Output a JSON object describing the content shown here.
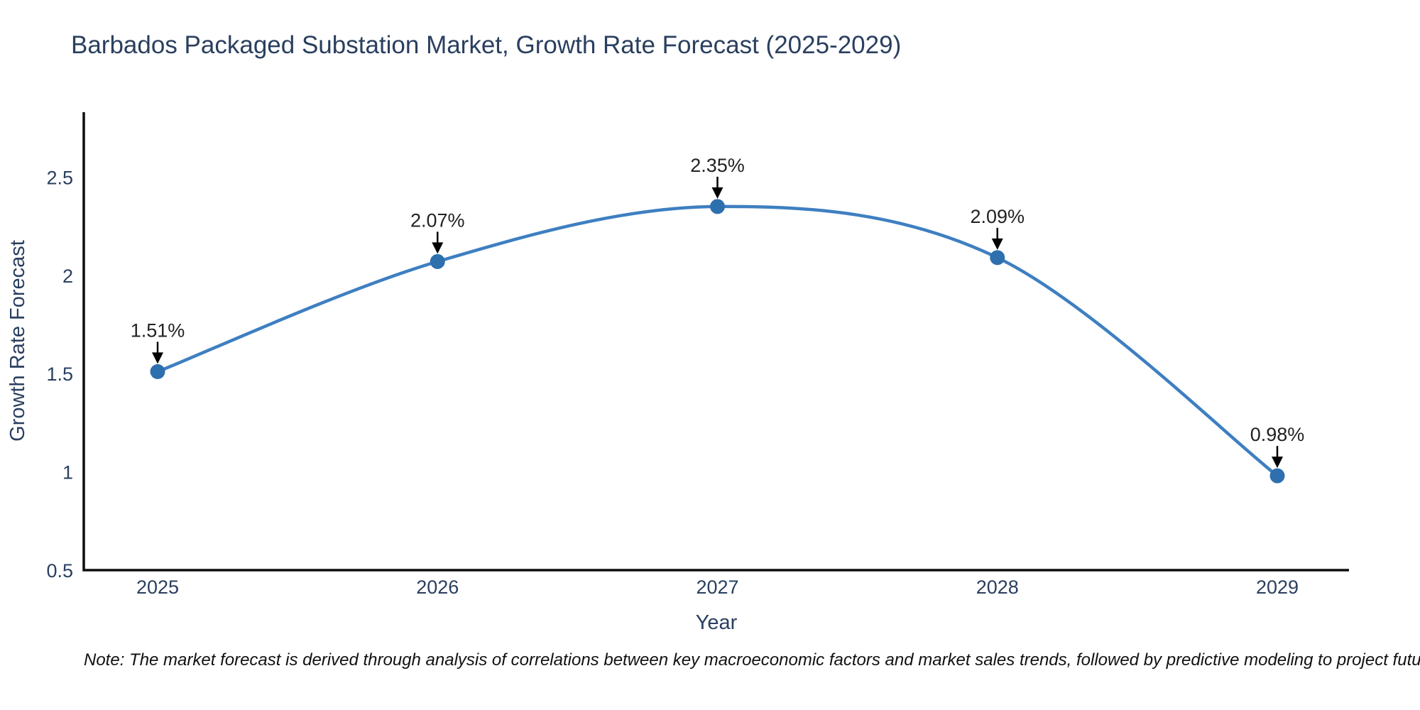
{
  "header": {
    "title": "Barbados Packaged Substation Market, Growth Rate Forecast (2025-2029)"
  },
  "note": {
    "text": "Note: The market forecast is derived through analysis of correlations between key macroeconomic factors and market sales trends, followed by predictive modeling to project future sales"
  },
  "chart_data": {
    "type": "line",
    "title": "Barbados Packaged Substation Market, Growth Rate Forecast (2025-2029)",
    "categories": [
      "2025",
      "2026",
      "2027",
      "2028",
      "2029"
    ],
    "x": [
      2025,
      2026,
      2027,
      2028,
      2029
    ],
    "series": [
      {
        "name": "Growth Rate Forecast",
        "values": [
          1.51,
          2.07,
          2.35,
          2.09,
          0.98
        ]
      }
    ],
    "point_labels": [
      "1.51%",
      "2.07%",
      "2.35%",
      "2.09%",
      "0.98%"
    ],
    "xlabel": "Year",
    "ylabel": "Growth Rate Forecast",
    "ylim": [
      0.5,
      2.83
    ],
    "yticks": [
      0.5,
      1,
      1.5,
      2,
      2.5
    ],
    "ytick_labels": [
      "0.5",
      "1",
      "1.5",
      "2",
      "2.5"
    ],
    "line_shape": "spline",
    "grid": false,
    "legend_position": "none",
    "colors": {
      "line": "#3e7fc1",
      "marker": "#2e6fae",
      "axis": "#0d0d0d",
      "tick_label": "#2a3f5f",
      "annotation_text": "#222222",
      "annotation_arrow": "#000000",
      "title": "#2a3f5f"
    }
  }
}
